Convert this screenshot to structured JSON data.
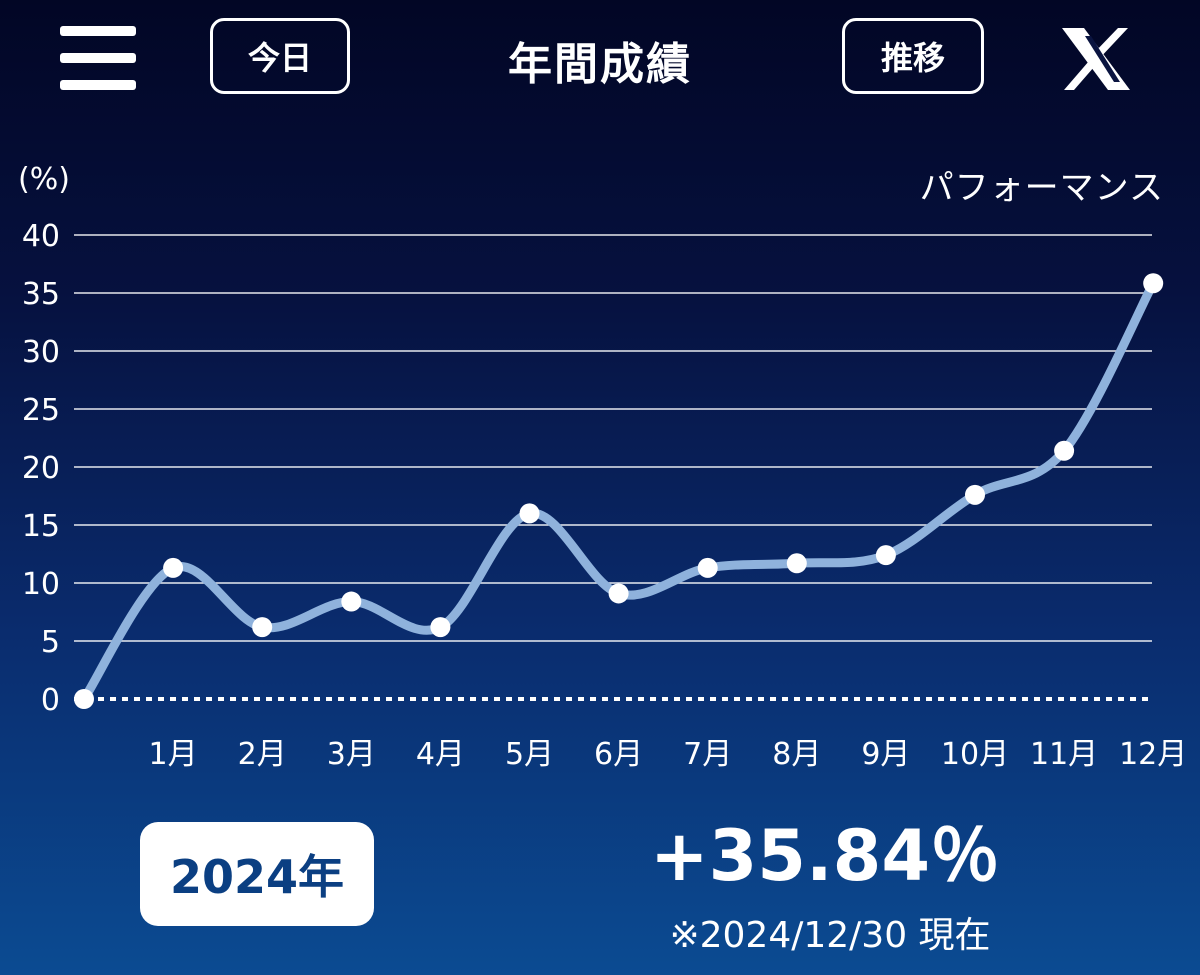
{
  "header": {
    "menu_icon": "hamburger-icon",
    "today_label": "今日",
    "title": "年間成績",
    "trend_label": "推移",
    "share_icon": "x-logo-icon"
  },
  "chart_labels": {
    "y_unit": "(%)",
    "series_name": "パフォーマンス"
  },
  "chart_data": {
    "type": "line",
    "title": "",
    "xlabel": "",
    "ylabel": "(%)",
    "x": [
      "",
      "1月",
      "2月",
      "3月",
      "4月",
      "5月",
      "6月",
      "7月",
      "8月",
      "9月",
      "10月",
      "11月",
      "12月"
    ],
    "ylim": [
      0,
      40
    ],
    "yticks": [
      0,
      5,
      10,
      15,
      20,
      25,
      30,
      35,
      40
    ],
    "grid": true,
    "series": [
      {
        "name": "パフォーマンス",
        "values": [
          0,
          11.3,
          6.2,
          8.4,
          6.2,
          16.0,
          9.1,
          11.3,
          11.7,
          12.4,
          17.6,
          21.4,
          35.84
        ]
      }
    ],
    "colors": {
      "line": "#8fb2dc",
      "point": "#ffffff",
      "grid": "#ffffff",
      "text": "#ffffff"
    }
  },
  "footer": {
    "year_label": "2024年",
    "result": "+35.84％",
    "as_of": "※2024/12/30 現在"
  }
}
